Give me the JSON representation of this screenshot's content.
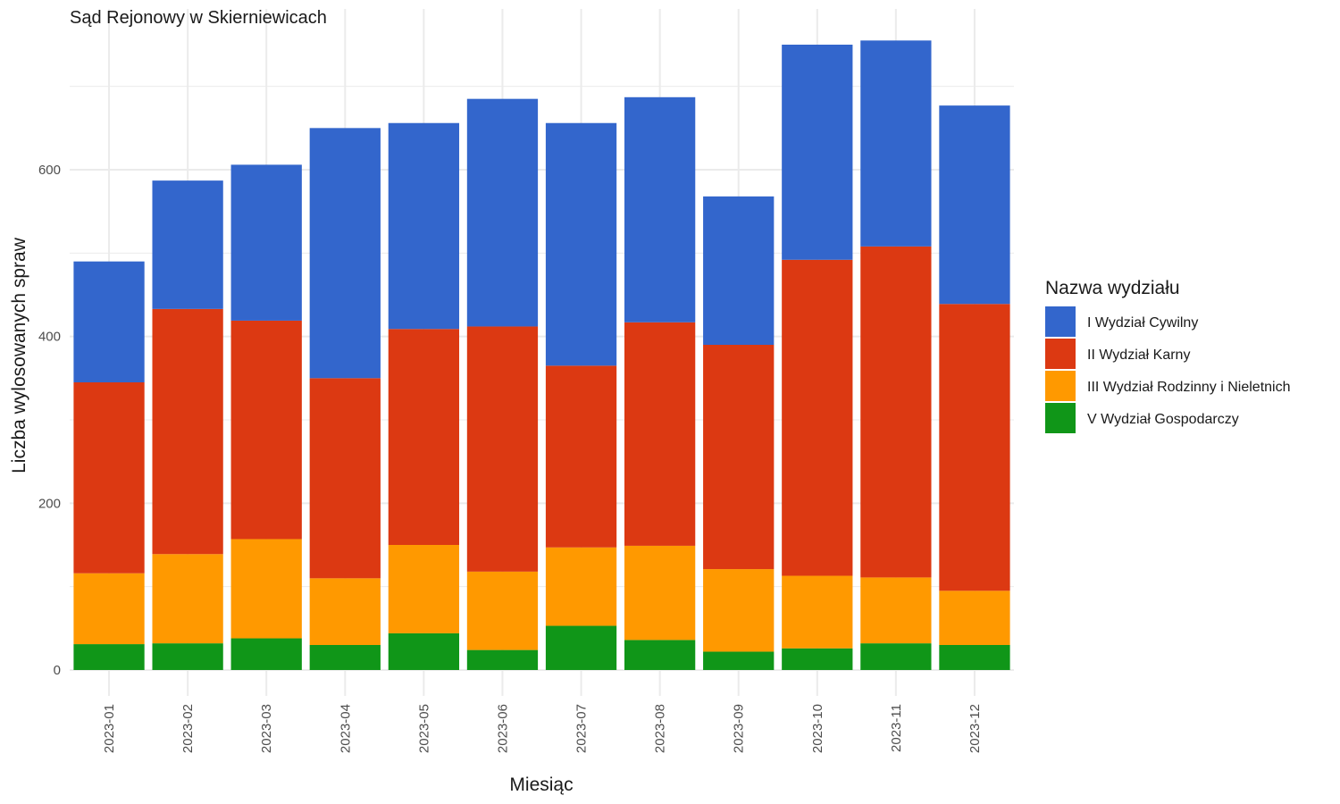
{
  "chart_data": {
    "type": "bar",
    "stacked": true,
    "title": "Sąd Rejonowy w Skierniewicach",
    "xlabel": "Miesiąc",
    "ylabel": "Liczba wylosowanych spraw",
    "ylim": [
      0,
      770
    ],
    "yticks": [
      0,
      200,
      400,
      600
    ],
    "grid": true,
    "legend_title": "Nazwa wydziału",
    "legend_position": "right",
    "categories": [
      "2023-01",
      "2023-02",
      "2023-03",
      "2023-04",
      "2023-05",
      "2023-06",
      "2023-07",
      "2023-08",
      "2023-09",
      "2023-10",
      "2023-11",
      "2023-12"
    ],
    "series": [
      {
        "name": "V Wydział Gospodarczy",
        "color": "#109618",
        "values": [
          31,
          32,
          38,
          30,
          44,
          24,
          53,
          36,
          22,
          26,
          32,
          30
        ]
      },
      {
        "name": "III Wydział Rodzinny i Nieletnich",
        "color": "#FF9900",
        "values": [
          85,
          107,
          119,
          80,
          106,
          94,
          94,
          113,
          99,
          87,
          79,
          65
        ]
      },
      {
        "name": "II Wydział Karny",
        "color": "#DC3912",
        "values": [
          229,
          294,
          262,
          240,
          259,
          294,
          218,
          268,
          269,
          379,
          397,
          344
        ]
      },
      {
        "name": "I Wydział Cywilny",
        "color": "#3366CC",
        "values": [
          145,
          154,
          187,
          300,
          247,
          273,
          291,
          270,
          178,
          258,
          247,
          238
        ]
      }
    ]
  }
}
